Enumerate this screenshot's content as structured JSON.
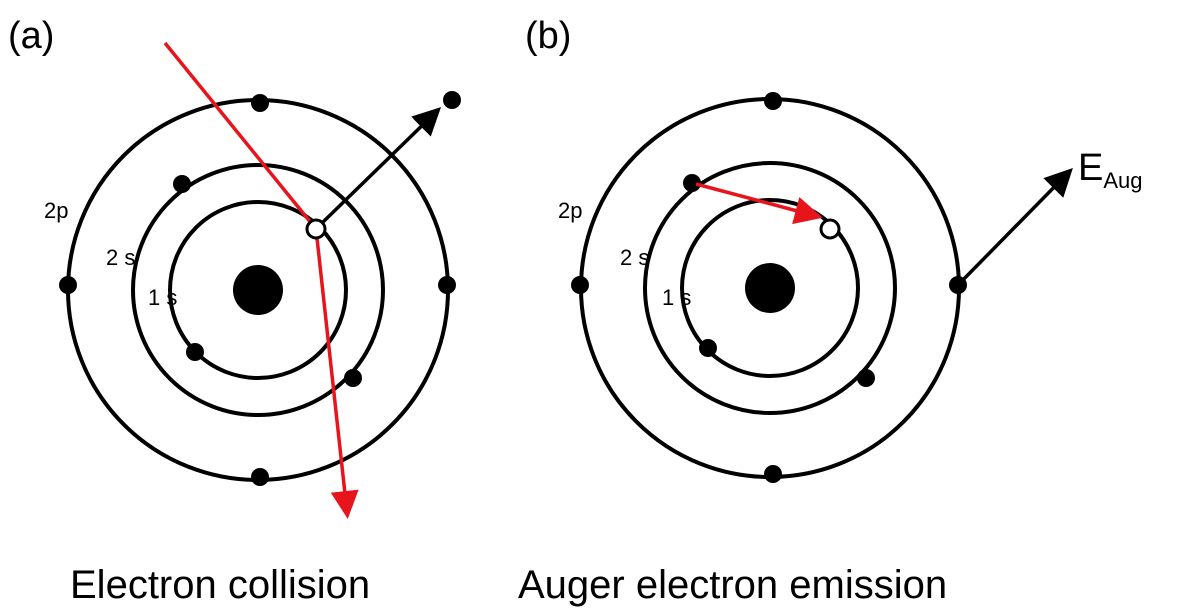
{
  "panels": [
    {
      "label": "(a)",
      "caption": "Electron collision",
      "shells": [
        "2p",
        "2 s",
        "1 s"
      ]
    },
    {
      "label": "(b)",
      "caption": "Auger electron emission",
      "shells": [
        "2p",
        "2 s",
        "1 s"
      ],
      "energy": {
        "symbol": "E",
        "subscript": "Aug"
      }
    }
  ]
}
